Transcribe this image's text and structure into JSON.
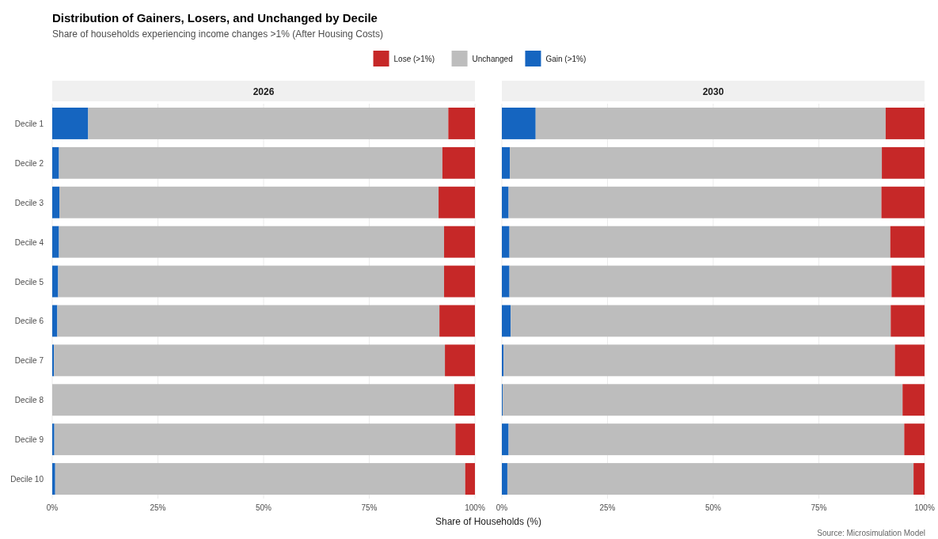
{
  "chart_data": [
    {
      "type": "bar",
      "orientation": "horizontal",
      "stacked": true,
      "title": "Distribution of Gainers, Losers, and Unchanged by Decile",
      "subtitle": "Share of households experiencing income changes >1% (After Housing Costs)",
      "xlabel": "Share of Households (%)",
      "annotations": [
        "2026"
      ],
      "legend": "top",
      "grid": "x",
      "categories": [
        "Decile 1",
        "Decile 2",
        "Decile 3",
        "Decile 4",
        "Decile 5",
        "Decile 6",
        "Decile 7",
        "Decile 8",
        "Decile 9",
        "Decile 10"
      ],
      "xlim": [
        0,
        100
      ],
      "xticks": [
        {
          "value": 0,
          "label": "0%"
        },
        {
          "value": 25,
          "label": "25%"
        },
        {
          "value": 50,
          "label": "50%"
        },
        {
          "value": 75,
          "label": "75%"
        },
        {
          "value": 100,
          "label": "100%"
        }
      ],
      "series": [
        {
          "name": "Gain (>1%)",
          "color": "#1565c0",
          "values": [
            8.5,
            1.6,
            1.7,
            1.6,
            1.4,
            1.2,
            0.4,
            0,
            0.5,
            0.7
          ]
        },
        {
          "name": "Unchanged",
          "color": "#bdbdbd",
          "values": [
            85.2,
            90.7,
            89.7,
            91.1,
            91.3,
            90.4,
            92.5,
            95.1,
            94.9,
            97.0
          ]
        },
        {
          "name": "Lose (>1%)",
          "color": "#c62828",
          "values": [
            6.3,
            7.7,
            8.6,
            7.3,
            7.3,
            8.4,
            7.1,
            4.9,
            4.6,
            2.3
          ]
        }
      ]
    },
    {
      "type": "bar",
      "orientation": "horizontal",
      "stacked": true,
      "annotations": [
        "2030",
        "Source: Microsimulation Model"
      ],
      "grid": "x",
      "tick_labels": "x",
      "categories": [
        null,
        null,
        null,
        null,
        null,
        null,
        null,
        null,
        null,
        null
      ],
      "xlim": [
        0,
        100
      ],
      "xticks": [
        {
          "value": 0,
          "label": "0%"
        },
        {
          "value": 25,
          "label": "25%"
        },
        {
          "value": 50,
          "label": "50%"
        },
        {
          "value": 75,
          "label": "75%"
        },
        {
          "value": 100,
          "label": "100%"
        }
      ],
      "series": [
        {
          "color": "#1565c0",
          "values": [
            8.0,
            1.9,
            1.6,
            1.8,
            1.8,
            2.1,
            0.4,
            0.2,
            1.6,
            1.3
          ]
        },
        {
          "color": "#bdbdbd",
          "values": [
            82.8,
            88.0,
            88.2,
            90.1,
            90.4,
            89.9,
            92.6,
            94.6,
            93.6,
            96.1
          ]
        },
        {
          "color": "#c62828",
          "values": [
            9.2,
            10.1,
            10.2,
            8.1,
            7.8,
            8.0,
            7.0,
            5.2,
            4.8,
            2.6
          ]
        }
      ]
    }
  ]
}
